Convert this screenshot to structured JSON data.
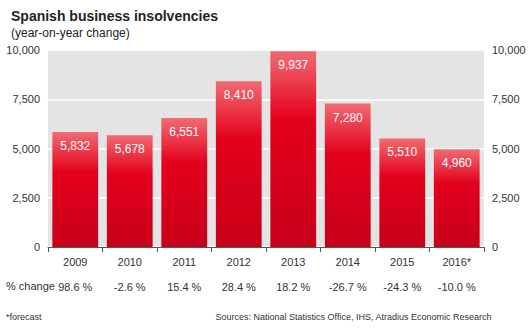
{
  "chart_data": {
    "type": "bar",
    "title": "Spanish business insolvencies",
    "subtitle": "(year-on-year change)",
    "categories": [
      "2009",
      "2010",
      "2011",
      "2012",
      "2013",
      "2014",
      "2015",
      "2016*"
    ],
    "values": [
      5832,
      5678,
      6551,
      8410,
      9937,
      7280,
      5510,
      4960
    ],
    "value_labels": [
      "5,832",
      "5,678",
      "6,551",
      "8,410",
      "9,937",
      "7,280",
      "5,510",
      "4,960"
    ],
    "data_labels": true,
    "color": "#e3001b",
    "ylim": [
      0,
      10000
    ],
    "yticks": [
      0,
      {
        "value": 2500,
        "label": "2,500"
      },
      {
        "value": 5000,
        "label": "5,000"
      },
      {
        "value": 7500,
        "label": "7,500"
      },
      {
        "value": 10000,
        "label": "10,000"
      }
    ],
    "y2lim": [
      0,
      10000
    ],
    "y2ticks": [
      0,
      {
        "value": 2500,
        "label": "2,500"
      },
      {
        "value": 5000,
        "label": "5,000"
      },
      {
        "value": 7500,
        "label": "7,500"
      },
      {
        "value": 10000,
        "label": "10,000"
      }
    ],
    "grid": true,
    "annotations": {
      "row_label": "% change",
      "row_values": [
        "98.6 %",
        "-2.6 %",
        "15.4 %",
        "28.4 %",
        "18.2 %",
        "-26.7 %",
        "-24.3 %",
        "-10.0 %"
      ],
      "footnote": "*forecast",
      "source": "Sources: National Statistics Office, IHS, Atradius Economic Research"
    }
  }
}
